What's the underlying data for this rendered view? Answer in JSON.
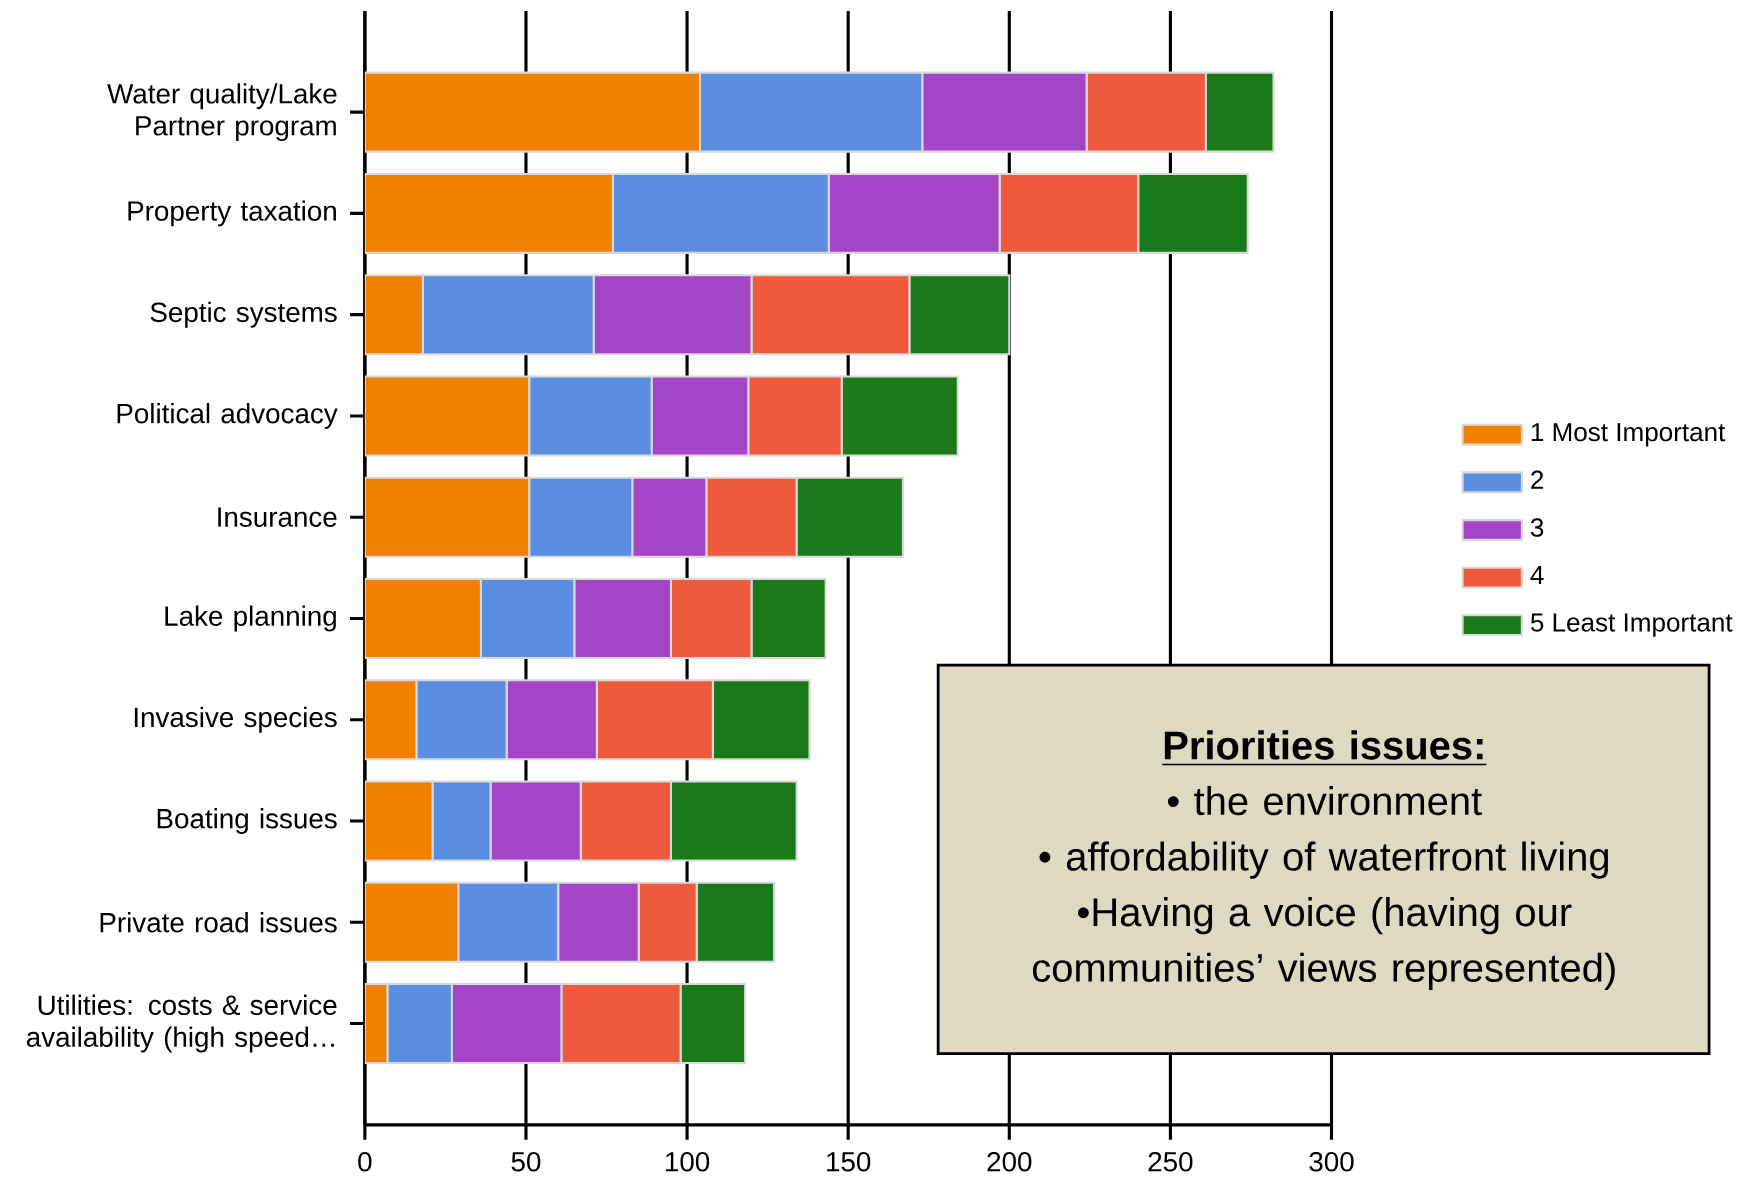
{
  "chart_data": {
    "type": "bar",
    "orientation": "horizontal",
    "stacked": true,
    "categories": [
      "Water quality/Lake Partner program",
      "Property taxation",
      "Septic systems",
      "Political advocacy",
      "Insurance",
      "Lake planning",
      "Invasive species",
      "Boating issues",
      "Private road issues",
      "Utilities: costs & service availability (high speed…"
    ],
    "series": [
      {
        "name": "1 Most Important",
        "color": "#f08000",
        "values": [
          104,
          77,
          18,
          51,
          51,
          36,
          16,
          21,
          29,
          7
        ]
      },
      {
        "name": "2",
        "color": "#5b8de0",
        "values": [
          69,
          67,
          53,
          38,
          32,
          29,
          28,
          18,
          31,
          20
        ]
      },
      {
        "name": "3",
        "color": "#a445c8",
        "values": [
          51,
          53,
          49,
          30,
          23,
          30,
          28,
          28,
          25,
          34
        ]
      },
      {
        "name": "4",
        "color": "#f05a3c",
        "values": [
          37,
          43,
          49,
          29,
          28,
          25,
          36,
          28,
          18,
          37
        ]
      },
      {
        "name": "5 Least Important",
        "color": "#1a7a1a",
        "values": [
          21,
          34,
          31,
          36,
          33,
          23,
          30,
          39,
          24,
          20
        ]
      }
    ],
    "xlim": [
      0,
      300
    ],
    "xticks": [
      0,
      50,
      100,
      150,
      200,
      250,
      300
    ],
    "grid": "x",
    "legend": "right",
    "annotations": [
      "Priorities issues:",
      "• the environment",
      "• affordability of waterfront living",
      "•Having a voice (having our communities’ views represented)"
    ]
  }
}
